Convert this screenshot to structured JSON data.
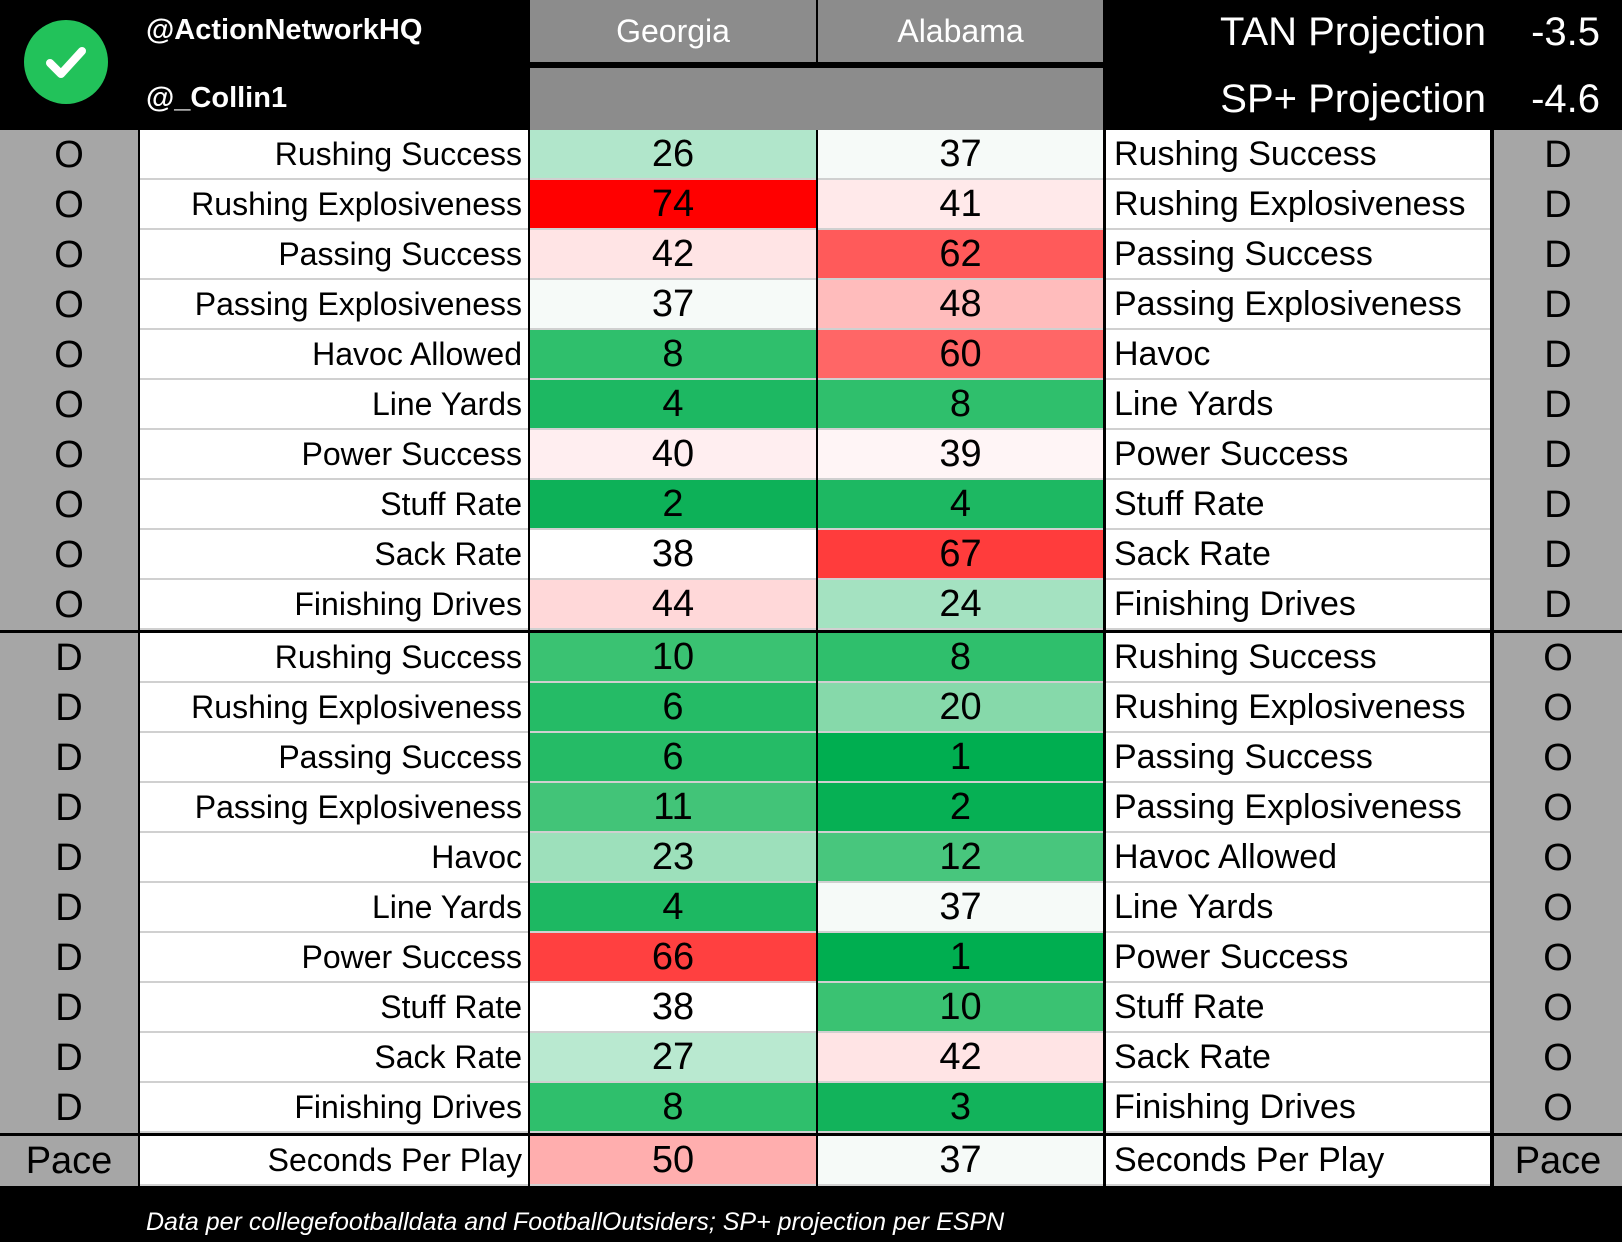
{
  "header": {
    "handle_1": "@ActionNetworkHQ",
    "handle_2": "@_Collin1",
    "logo_icon": "checkmark-icon",
    "logo_color": "#22c25a",
    "team_left": "Georgia",
    "team_right": "Alabama",
    "projections": [
      {
        "label": "TAN Projection",
        "value": "-3.5"
      },
      {
        "label": "SP+ Projection",
        "value": "-4.6"
      }
    ]
  },
  "rows": [
    {
      "side_left": "O",
      "label_left": "Rushing Success",
      "georgia": "26",
      "alabama": "37",
      "label_right": "Rushing Success",
      "side_right": "D",
      "georgia_color": "#b1e6cb",
      "alabama_color": "#f6faf8"
    },
    {
      "side_left": "O",
      "label_left": "Rushing Explosiveness",
      "georgia": "74",
      "alabama": "41",
      "label_right": "Rushing Explosiveness",
      "side_right": "D",
      "georgia_color": "#ff0000",
      "alabama_color": "#ffe9ea"
    },
    {
      "side_left": "O",
      "label_left": "Passing Success",
      "georgia": "42",
      "alabama": "62",
      "label_right": "Passing Success",
      "side_right": "D",
      "georgia_color": "#ffe4e5",
      "alabama_color": "#ff5a5a"
    },
    {
      "side_left": "O",
      "label_left": "Passing Explosiveness",
      "georgia": "37",
      "alabama": "48",
      "label_right": "Passing Explosiveness",
      "side_right": "D",
      "georgia_color": "#f6faf8",
      "alabama_color": "#ffbcbc"
    },
    {
      "side_left": "O",
      "label_left": "Havoc Allowed",
      "georgia": "8",
      "alabama": "60",
      "label_right": "Havoc",
      "side_right": "D",
      "georgia_color": "#2fbf6c",
      "alabama_color": "#ff6666"
    },
    {
      "side_left": "O",
      "label_left": "Line Yards",
      "georgia": "4",
      "alabama": "8",
      "label_right": "Line Yards",
      "side_right": "D",
      "georgia_color": "#1db862",
      "alabama_color": "#2fbf6c"
    },
    {
      "side_left": "O",
      "label_left": "Power Success",
      "georgia": "40",
      "alabama": "39",
      "label_right": "Power Success",
      "side_right": "D",
      "georgia_color": "#ffeef0",
      "alabama_color": "#fff5f6"
    },
    {
      "side_left": "O",
      "label_left": "Stuff Rate",
      "georgia": "2",
      "alabama": "4",
      "label_right": "Stuff Rate",
      "side_right": "D",
      "georgia_color": "#0db158",
      "alabama_color": "#1db862"
    },
    {
      "side_left": "O",
      "label_left": "Sack Rate",
      "georgia": "38",
      "alabama": "67",
      "label_right": "Sack Rate",
      "side_right": "D",
      "georgia_color": "#ffffff",
      "alabama_color": "#ff3c3c"
    },
    {
      "side_left": "O",
      "label_left": "Finishing Drives",
      "georgia": "44",
      "alabama": "24",
      "label_right": "Finishing Drives",
      "side_right": "D",
      "georgia_color": "#ffd8d9",
      "alabama_color": "#a4e2c1"
    },
    {
      "side_left": "D",
      "label_left": "Rushing Success",
      "georgia": "10",
      "alabama": "8",
      "label_right": "Rushing Success",
      "side_right": "O",
      "georgia_color": "#3ac272",
      "alabama_color": "#2fbf6c"
    },
    {
      "side_left": "D",
      "label_left": "Rushing Explosiveness",
      "georgia": "6",
      "alabama": "20",
      "label_right": "Rushing Explosiveness",
      "side_right": "O",
      "georgia_color": "#25bb66",
      "alabama_color": "#86d9aa"
    },
    {
      "side_left": "D",
      "label_left": "Passing Success",
      "georgia": "6",
      "alabama": "1",
      "label_right": "Passing Success",
      "side_right": "O",
      "georgia_color": "#25bb66",
      "alabama_color": "#00ae50"
    },
    {
      "side_left": "D",
      "label_left": "Passing Explosiveness",
      "georgia": "11",
      "alabama": "2",
      "label_right": "Passing Explosiveness",
      "side_right": "O",
      "georgia_color": "#42c478",
      "alabama_color": "#06b054"
    },
    {
      "side_left": "D",
      "label_left": "Havoc",
      "georgia": "23",
      "alabama": "12",
      "label_right": "Havoc Allowed",
      "side_right": "O",
      "georgia_color": "#9de0bb",
      "alabama_color": "#48c67d"
    },
    {
      "side_left": "D",
      "label_left": "Line Yards",
      "georgia": "4",
      "alabama": "37",
      "label_right": "Line Yards",
      "side_right": "O",
      "georgia_color": "#1db862",
      "alabama_color": "#f6faf8"
    },
    {
      "side_left": "D",
      "label_left": "Power Success",
      "georgia": "66",
      "alabama": "1",
      "label_right": "Power Success",
      "side_right": "O",
      "georgia_color": "#ff4040",
      "alabama_color": "#00ae50"
    },
    {
      "side_left": "D",
      "label_left": "Stuff Rate",
      "georgia": "38",
      "alabama": "10",
      "label_right": "Stuff Rate",
      "side_right": "O",
      "georgia_color": "#ffffff",
      "alabama_color": "#3ac272"
    },
    {
      "side_left": "D",
      "label_left": "Sack Rate",
      "georgia": "27",
      "alabama": "42",
      "label_right": "Sack Rate",
      "side_right": "O",
      "georgia_color": "#b9e9d0",
      "alabama_color": "#ffe4e5"
    },
    {
      "side_left": "D",
      "label_left": "Finishing Drives",
      "georgia": "8",
      "alabama": "3",
      "label_right": "Finishing Drives",
      "side_right": "O",
      "georgia_color": "#2fbf6c",
      "alabama_color": "#12b35b"
    },
    {
      "side_left": "Pace",
      "label_left": "Seconds Per Play",
      "georgia": "50",
      "alabama": "37",
      "label_right": "Seconds Per Play",
      "side_right": "Pace",
      "georgia_color": "#ffaeae",
      "alabama_color": "#f6faf8"
    }
  ],
  "footer": {
    "note": "Data per collegefootballdata and FootballOutsiders; SP+ projection per ESPN"
  }
}
